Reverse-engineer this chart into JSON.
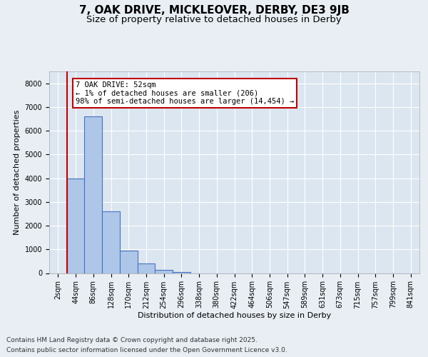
{
  "title": "7, OAK DRIVE, MICKLEOVER, DERBY, DE3 9JB",
  "subtitle": "Size of property relative to detached houses in Derby",
  "xlabel": "Distribution of detached houses by size in Derby",
  "ylabel": "Number of detached properties",
  "categories": [
    "2sqm",
    "44sqm",
    "86sqm",
    "128sqm",
    "170sqm",
    "212sqm",
    "254sqm",
    "296sqm",
    "338sqm",
    "380sqm",
    "422sqm",
    "464sqm",
    "506sqm",
    "547sqm",
    "589sqm",
    "631sqm",
    "673sqm",
    "715sqm",
    "757sqm",
    "799sqm",
    "841sqm"
  ],
  "values": [
    0,
    4000,
    6600,
    2600,
    950,
    400,
    130,
    60,
    0,
    0,
    0,
    0,
    0,
    0,
    0,
    0,
    0,
    0,
    0,
    0,
    0
  ],
  "bar_color": "#aec6e8",
  "bar_edge_color": "#4472c4",
  "background_color": "#e8eef4",
  "plot_background": "#dce6f0",
  "grid_color": "#ffffff",
  "vline_color": "#c00000",
  "annotation_text": "7 OAK DRIVE: 52sqm\n← 1% of detached houses are smaller (206)\n98% of semi-detached houses are larger (14,454) →",
  "annotation_box_color": "#ffffff",
  "annotation_box_edge": "#c00000",
  "ylim": [
    0,
    8500
  ],
  "yticks": [
    0,
    1000,
    2000,
    3000,
    4000,
    5000,
    6000,
    7000,
    8000
  ],
  "footer1": "Contains HM Land Registry data © Crown copyright and database right 2025.",
  "footer2": "Contains public sector information licensed under the Open Government Licence v3.0.",
  "title_fontsize": 11,
  "subtitle_fontsize": 9.5,
  "axis_label_fontsize": 8,
  "tick_fontsize": 7,
  "annotation_fontsize": 7.5,
  "footer_fontsize": 6.5
}
